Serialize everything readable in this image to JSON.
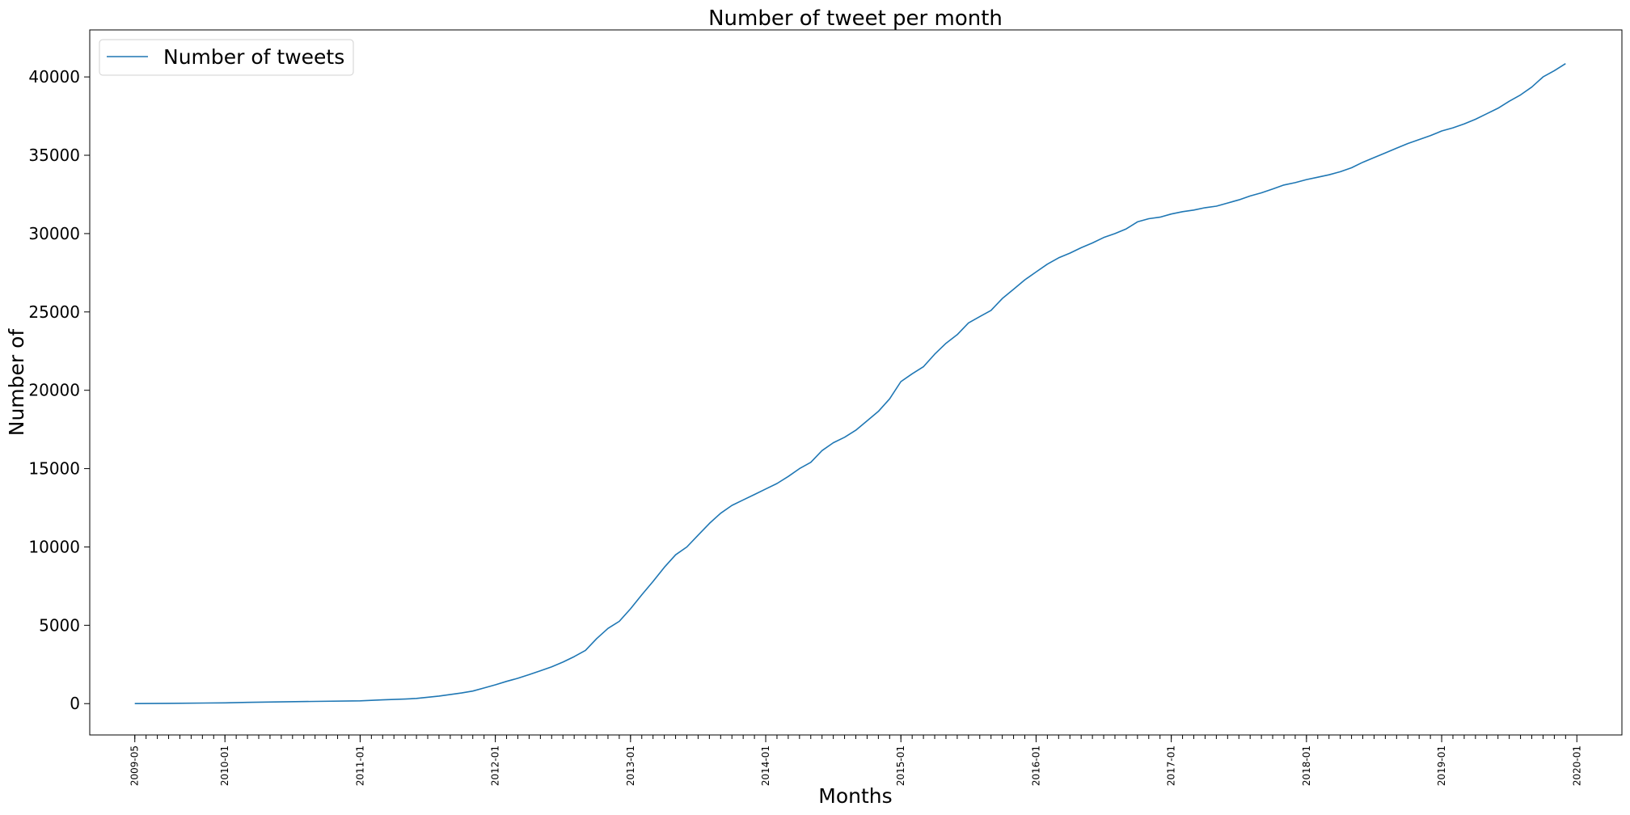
{
  "chart_data": {
    "type": "line",
    "title": "Number of tweet per month",
    "xlabel": "Months",
    "ylabel": "Number of",
    "legend": {
      "placement": "top-left",
      "entries": [
        "Number of tweets"
      ]
    },
    "grid": false,
    "ylim": [
      -2000,
      43000
    ],
    "xlim": [
      "2009-01",
      "2020-05"
    ],
    "yticks": [
      0,
      5000,
      10000,
      15000,
      20000,
      25000,
      30000,
      35000,
      40000
    ],
    "ytick_labels": [
      "0",
      "5000",
      "10000",
      "15000",
      "20000",
      "25000",
      "30000",
      "35000",
      "40000"
    ],
    "xtick_labels": [
      "2009-05",
      "2010-01",
      "2011-01",
      "2012-01",
      "2013-01",
      "2014-01",
      "2015-01",
      "2016-01",
      "2017-01",
      "2018-01",
      "2019-01",
      "2020-01"
    ],
    "series_color": "#1f77b4",
    "series": [
      {
        "name": "Number of tweets",
        "points": [
          [
            "2009-05",
            0
          ],
          [
            "2009-08",
            20
          ],
          [
            "2010-01",
            50
          ],
          [
            "2010-03",
            80
          ],
          [
            "2010-06",
            110
          ],
          [
            "2010-09",
            140
          ],
          [
            "2011-01",
            180
          ],
          [
            "2011-03",
            240
          ],
          [
            "2011-05",
            290
          ],
          [
            "2011-06",
            330
          ],
          [
            "2011-08",
            480
          ],
          [
            "2011-10",
            680
          ],
          [
            "2011-11",
            800
          ],
          [
            "2011-12",
            1000
          ],
          [
            "2012-01",
            1200
          ],
          [
            "2012-02",
            1420
          ],
          [
            "2012-03",
            1620
          ],
          [
            "2012-04",
            1850
          ],
          [
            "2012-05",
            2100
          ],
          [
            "2012-06",
            2350
          ],
          [
            "2012-07",
            2650
          ],
          [
            "2012-08",
            3000
          ],
          [
            "2012-09",
            3400
          ],
          [
            "2012-10",
            4150
          ],
          [
            "2012-11",
            4800
          ],
          [
            "2012-12",
            5250
          ],
          [
            "2013-01",
            6050
          ],
          [
            "2013-02",
            6950
          ],
          [
            "2013-03",
            7800
          ],
          [
            "2013-04",
            8700
          ],
          [
            "2013-05",
            9500
          ],
          [
            "2013-06",
            10000
          ],
          [
            "2013-07",
            10750
          ],
          [
            "2013-08",
            11500
          ],
          [
            "2013-09",
            12150
          ],
          [
            "2013-10",
            12650
          ],
          [
            "2013-11",
            13000
          ],
          [
            "2013-12",
            13350
          ],
          [
            "2014-01",
            13700
          ],
          [
            "2014-02",
            14050
          ],
          [
            "2014-03",
            14500
          ],
          [
            "2014-04",
            15000
          ],
          [
            "2014-05",
            15400
          ],
          [
            "2014-06",
            16150
          ],
          [
            "2014-07",
            16650
          ],
          [
            "2014-08",
            17000
          ],
          [
            "2014-09",
            17450
          ],
          [
            "2014-10",
            18050
          ],
          [
            "2014-11",
            18650
          ],
          [
            "2014-12",
            19450
          ],
          [
            "2015-01",
            20550
          ],
          [
            "2015-02",
            21050
          ],
          [
            "2015-03",
            21500
          ],
          [
            "2015-04",
            22300
          ],
          [
            "2015-05",
            23000
          ],
          [
            "2015-06",
            23550
          ],
          [
            "2015-07",
            24300
          ],
          [
            "2015-08",
            24700
          ],
          [
            "2015-09",
            25100
          ],
          [
            "2015-10",
            25850
          ],
          [
            "2015-11",
            26450
          ],
          [
            "2015-12",
            27050
          ],
          [
            "2016-01",
            27550
          ],
          [
            "2016-02",
            28050
          ],
          [
            "2016-03",
            28450
          ],
          [
            "2016-04",
            28750
          ],
          [
            "2016-05",
            29100
          ],
          [
            "2016-06",
            29400
          ],
          [
            "2016-07",
            29750
          ],
          [
            "2016-08",
            30000
          ],
          [
            "2016-09",
            30300
          ],
          [
            "2016-10",
            30750
          ],
          [
            "2016-11",
            30950
          ],
          [
            "2016-12",
            31050
          ],
          [
            "2017-01",
            31250
          ],
          [
            "2017-02",
            31400
          ],
          [
            "2017-03",
            31500
          ],
          [
            "2017-04",
            31650
          ],
          [
            "2017-05",
            31750
          ],
          [
            "2017-06",
            31950
          ],
          [
            "2017-07",
            32150
          ],
          [
            "2017-08",
            32400
          ],
          [
            "2017-09",
            32600
          ],
          [
            "2017-10",
            32850
          ],
          [
            "2017-11",
            33100
          ],
          [
            "2017-12",
            33250
          ],
          [
            "2018-01",
            33450
          ],
          [
            "2018-02",
            33600
          ],
          [
            "2018-03",
            33750
          ],
          [
            "2018-04",
            33950
          ],
          [
            "2018-05",
            34200
          ],
          [
            "2018-06",
            34550
          ],
          [
            "2018-07",
            34850
          ],
          [
            "2018-08",
            35150
          ],
          [
            "2018-09",
            35450
          ],
          [
            "2018-10",
            35750
          ],
          [
            "2018-11",
            36000
          ],
          [
            "2018-12",
            36250
          ],
          [
            "2019-01",
            36550
          ],
          [
            "2019-02",
            36750
          ],
          [
            "2019-03",
            37000
          ],
          [
            "2019-04",
            37300
          ],
          [
            "2019-05",
            37650
          ],
          [
            "2019-06",
            38000
          ],
          [
            "2019-07",
            38450
          ],
          [
            "2019-08",
            38850
          ],
          [
            "2019-09",
            39350
          ],
          [
            "2019-10",
            40000
          ],
          [
            "2019-11",
            40400
          ],
          [
            "2019-12",
            40850
          ]
        ]
      }
    ]
  }
}
